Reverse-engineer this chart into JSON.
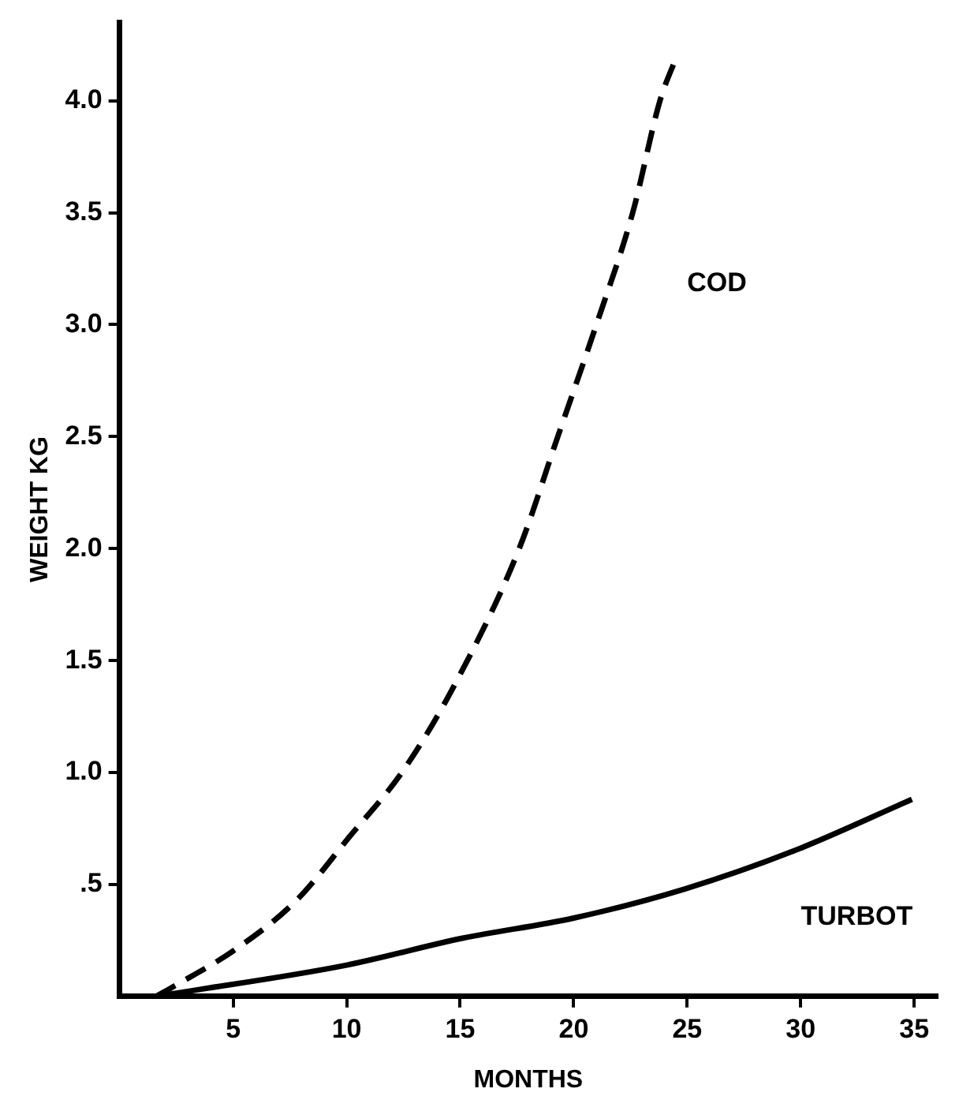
{
  "chart_data": {
    "type": "line",
    "xlabel": "MONTHS",
    "ylabel": "WEIGHT KG",
    "xlim": [
      0,
      36
    ],
    "ylim": [
      0,
      4.35
    ],
    "xticks": [
      5,
      10,
      15,
      20,
      25,
      30,
      35
    ],
    "yticks": [
      {
        "value": 0.5,
        "label": ".5"
      },
      {
        "value": 1,
        "label": "1.0"
      },
      {
        "value": 1.5,
        "label": "1.5"
      },
      {
        "value": 2,
        "label": "2.0"
      },
      {
        "value": 2.5,
        "label": "2.5"
      },
      {
        "value": 3,
        "label": "3.0"
      },
      {
        "value": 3.5,
        "label": "3.5"
      },
      {
        "value": 4,
        "label": "4.0"
      }
    ],
    "grid": false,
    "legend": false,
    "marker": "none",
    "series": [
      {
        "name": "COD",
        "color": "#000000",
        "line_style": "dashed",
        "x": [
          1.6,
          2.3,
          5.1,
          7.8,
          10.1,
          12.5,
          14.8,
          17.6,
          19.3,
          21,
          22.6,
          23.8,
          24.5
        ],
        "values": [
          0,
          0.04,
          0.21,
          0.43,
          0.71,
          1.01,
          1.4,
          2,
          2.5,
          3,
          3.5,
          4,
          4.19
        ]
      },
      {
        "name": "TURBOT",
        "color": "#000000",
        "line_style": "solid",
        "x": [
          1.6,
          2.2,
          10,
          15.1,
          20,
          24.9,
          29.7,
          34.9
        ],
        "values": [
          0,
          0.01,
          0.14,
          0.26,
          0.35,
          0.48,
          0.65,
          0.88
        ]
      }
    ]
  }
}
